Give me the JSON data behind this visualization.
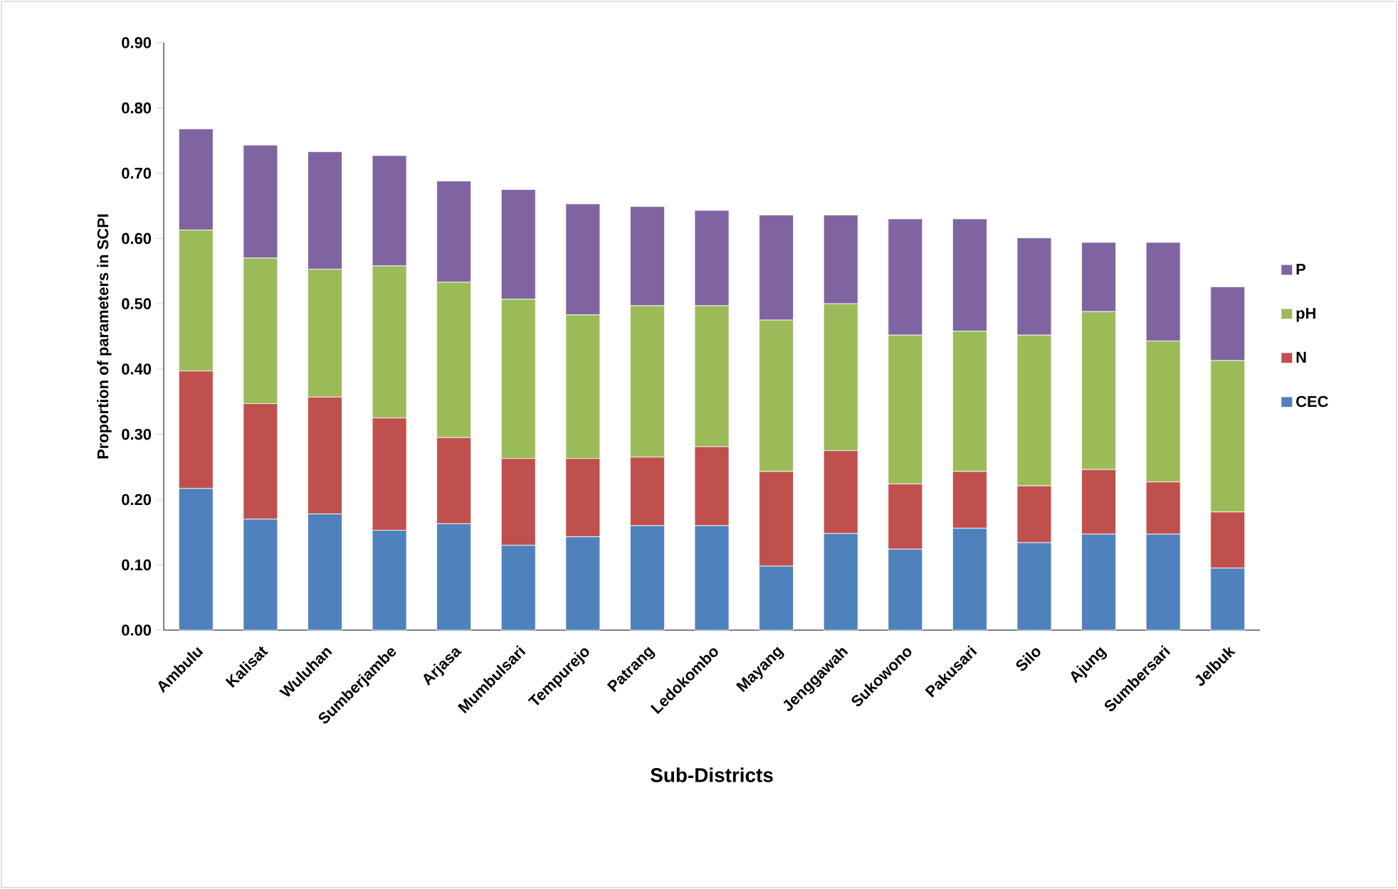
{
  "chart_data": {
    "type": "bar",
    "stacked": true,
    "xlabel": "Sub-Districts",
    "ylabel": "Proportion of parameters in SCPI",
    "categories": [
      "Ambulu",
      "Kalisat",
      "Wuluhan",
      "Sumberjambe",
      "Arjasa",
      "Mumbulsari",
      "Tempurejo",
      "Patrang",
      "Ledokombo",
      "Mayang",
      "Jenggawah",
      "Sukowono",
      "Pakusari",
      "Silo",
      "Ajung",
      "Sumbersari",
      "Jelbuk"
    ],
    "series": [
      {
        "name": "CEC",
        "color": "#4f81bd",
        "values": [
          0.217,
          0.17,
          0.178,
          0.153,
          0.163,
          0.13,
          0.143,
          0.16,
          0.16,
          0.098,
          0.148,
          0.124,
          0.156,
          0.134,
          0.147,
          0.147,
          0.095
        ]
      },
      {
        "name": "N",
        "color": "#c0504d",
        "values": [
          0.18,
          0.177,
          0.179,
          0.172,
          0.132,
          0.133,
          0.12,
          0.105,
          0.121,
          0.145,
          0.127,
          0.1,
          0.087,
          0.087,
          0.099,
          0.08,
          0.086
        ]
      },
      {
        "name": "pH",
        "color": "#9bbb59",
        "values": [
          0.216,
          0.223,
          0.196,
          0.233,
          0.238,
          0.244,
          0.22,
          0.232,
          0.216,
          0.232,
          0.225,
          0.228,
          0.215,
          0.231,
          0.242,
          0.216,
          0.232
        ]
      },
      {
        "name": "P",
        "color": "#8064a2",
        "values": [
          0.155,
          0.173,
          0.18,
          0.169,
          0.155,
          0.168,
          0.17,
          0.152,
          0.146,
          0.161,
          0.136,
          0.178,
          0.172,
          0.149,
          0.106,
          0.151,
          0.113
        ]
      }
    ],
    "ylim": [
      0,
      0.9
    ],
    "yticks": [
      {
        "value": 0,
        "label": "0.00"
      },
      {
        "value": 0.1,
        "label": "0.10"
      },
      {
        "value": 0.2,
        "label": "0.20"
      },
      {
        "value": 0.3,
        "label": "0.30"
      },
      {
        "value": 0.4,
        "label": "0.40"
      },
      {
        "value": 0.5,
        "label": "0.50"
      },
      {
        "value": 0.6,
        "label": "0.60"
      },
      {
        "value": 0.7,
        "label": "0.70"
      },
      {
        "value": 0.8,
        "label": "0.80"
      },
      {
        "value": 0.9,
        "label": "0.90"
      }
    ],
    "grid": false,
    "legend": "right"
  }
}
